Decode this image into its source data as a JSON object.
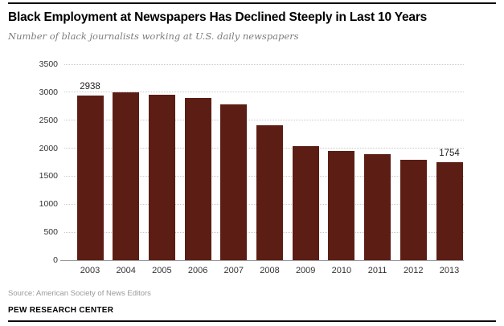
{
  "header": {
    "title": "Black Employment at Newspapers Has Declined Steeply in Last 10 Years",
    "subtitle": "Number of black journalists working at U.S. daily newspapers"
  },
  "footer": {
    "source": "Source: American Society of News Editors",
    "brand": "PEW RESEARCH CENTER"
  },
  "colors": {
    "bar": "#5c1e14",
    "gridline": "#c9c9c9",
    "axis_line": "#999999",
    "tick_text": "#333333",
    "subtitle_text": "#7d7d7d",
    "source_text": "#9a9a9a",
    "title_text": "#000000"
  },
  "chart_data": {
    "type": "bar",
    "title": "Black Employment at Newspapers Has Declined Steeply in Last 10 Years",
    "subtitle": "Number of black journalists working at U.S. daily newspapers",
    "categories": [
      "2003",
      "2004",
      "2005",
      "2006",
      "2007",
      "2008",
      "2009",
      "2010",
      "2011",
      "2012",
      "2013"
    ],
    "values": [
      2938,
      3000,
      2960,
      2900,
      2790,
      2410,
      2040,
      1950,
      1890,
      1800,
      1754
    ],
    "annotations": [
      {
        "category": "2003",
        "text": "2938"
      },
      {
        "category": "2013",
        "text": "1754"
      }
    ],
    "xlabel": "",
    "ylabel": "",
    "ylim": [
      0,
      3500
    ],
    "yticks": [
      0,
      500,
      1000,
      1500,
      2000,
      2500,
      3000,
      3500
    ],
    "grid": "horizontal-dotted",
    "legend": "none",
    "source": "Source: American Society of News Editors"
  }
}
